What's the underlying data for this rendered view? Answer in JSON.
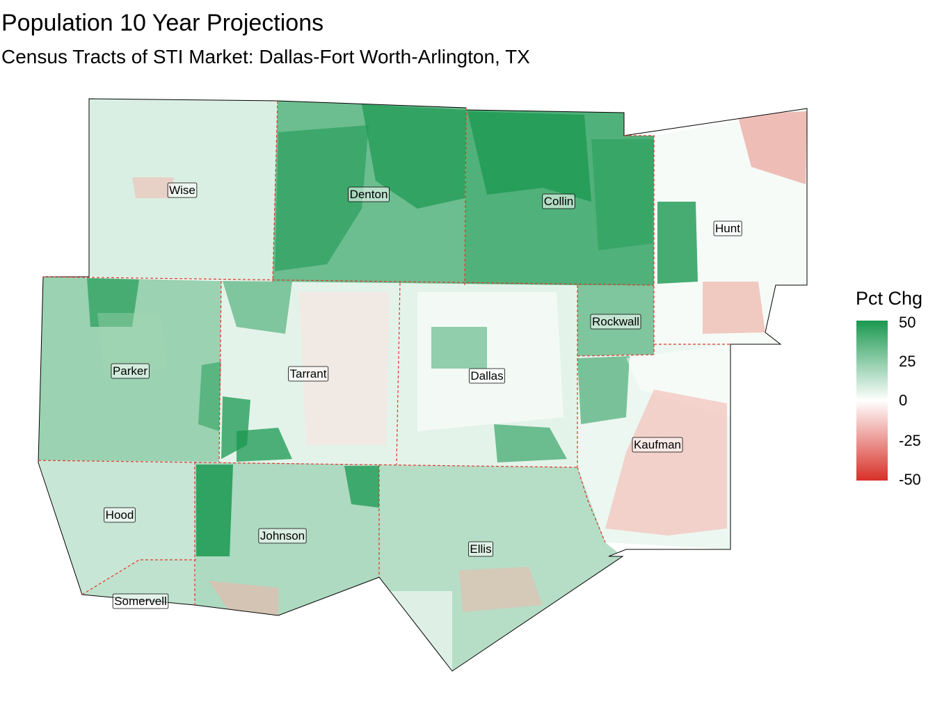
{
  "title": "Population 10 Year Projections",
  "subtitle": "Census Tracts of STI Market: Dallas-Fort Worth-Arlington, TX",
  "legend": {
    "title": "Pct Chg",
    "scale_min": -50,
    "scale_max": 50,
    "labels": [
      "50",
      "25",
      "0",
      "-25",
      "-50"
    ],
    "colors": {
      "high": "#1a9850",
      "mid": "#ffffff",
      "low": "#d73027"
    }
  },
  "colors": {
    "county_border": "#e0342a",
    "outline": "#000000"
  },
  "counties": [
    {
      "name": "Wise",
      "pct_chg": 8
    },
    {
      "name": "Denton",
      "pct_chg": 32
    },
    {
      "name": "Collin",
      "pct_chg": 38
    },
    {
      "name": "Hunt",
      "pct_chg": 2
    },
    {
      "name": "Parker",
      "pct_chg": 22
    },
    {
      "name": "Tarrant",
      "pct_chg": 6
    },
    {
      "name": "Dallas",
      "pct_chg": 6
    },
    {
      "name": "Rockwall",
      "pct_chg": 28
    },
    {
      "name": "Kaufman",
      "pct_chg": 4
    },
    {
      "name": "Hood",
      "pct_chg": 12
    },
    {
      "name": "Johnson",
      "pct_chg": 18
    },
    {
      "name": "Ellis",
      "pct_chg": 16
    },
    {
      "name": "Somervell",
      "pct_chg": 14
    }
  ]
}
